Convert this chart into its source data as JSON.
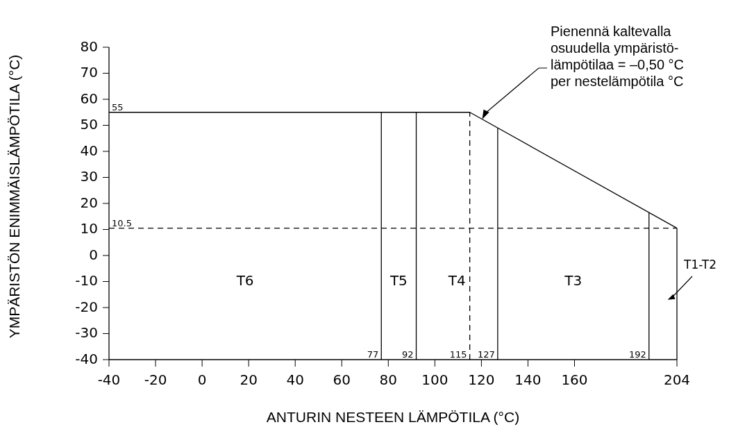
{
  "chart_data": {
    "type": "line",
    "xlabel": "ANTURIN NESTEEN LÄMPÖTILA (°C)",
    "ylabel": "YMPÄRISTÖN ENIMMÄISLÄMPÖTILA (°C)",
    "xlim": [
      -40,
      204
    ],
    "ylim": [
      -40,
      80
    ],
    "xticks": [
      -40,
      -20,
      0,
      20,
      40,
      60,
      80,
      100,
      120,
      140,
      160,
      204
    ],
    "yticks": [
      -40,
      -30,
      -20,
      -10,
      0,
      10,
      20,
      30,
      40,
      50,
      60,
      70,
      80
    ],
    "grid": false,
    "marker": "none",
    "series": [
      {
        "color": "#000000",
        "line_style": "solid",
        "x": [
          -40,
          115,
          204
        ],
        "values": [
          55,
          55,
          10.5
        ]
      },
      {
        "color": "#000000",
        "line_style": "solid",
        "x": [
          77,
          77
        ],
        "values": [
          -40,
          55
        ]
      },
      {
        "color": "#000000",
        "line_style": "solid",
        "x": [
          92,
          92
        ],
        "values": [
          -40,
          55
        ]
      },
      {
        "color": "#000000",
        "line_style": "solid",
        "x": [
          127,
          127
        ],
        "values": [
          -40,
          49
        ]
      },
      {
        "color": "#000000",
        "line_style": "solid",
        "x": [
          192,
          192
        ],
        "values": [
          -40,
          16.5
        ]
      },
      {
        "color": "#000000",
        "line_style": "solid",
        "x": [
          204,
          204
        ],
        "values": [
          -40,
          10.5
        ]
      },
      {
        "color": "#000000",
        "line_style": "dashed",
        "x": [
          115,
          115
        ],
        "values": [
          -40,
          55
        ]
      },
      {
        "color": "#000000",
        "line_style": "dashed",
        "x": [
          -40,
          204
        ],
        "values": [
          10.5,
          10.5
        ]
      }
    ],
    "annotations": [
      {
        "text": "55",
        "x": -40,
        "y": 55
      },
      {
        "text": "10.5",
        "x": -40,
        "y": 10.5
      },
      {
        "text": "77",
        "x": 77,
        "y": -40
      },
      {
        "text": "92",
        "x": 92,
        "y": -40
      },
      {
        "text": "115",
        "x": 115,
        "y": -40
      },
      {
        "text": "127",
        "x": 127,
        "y": -40
      },
      {
        "text": "192",
        "x": 192,
        "y": -40
      },
      "T6",
      "T5",
      "T4",
      "T3",
      "T1-T2",
      "Pienennä kaltevalla\nosuudella ympäristö-\nlämpötilaa = –0,50 °C\nper nestelämpötila °C"
    ]
  }
}
